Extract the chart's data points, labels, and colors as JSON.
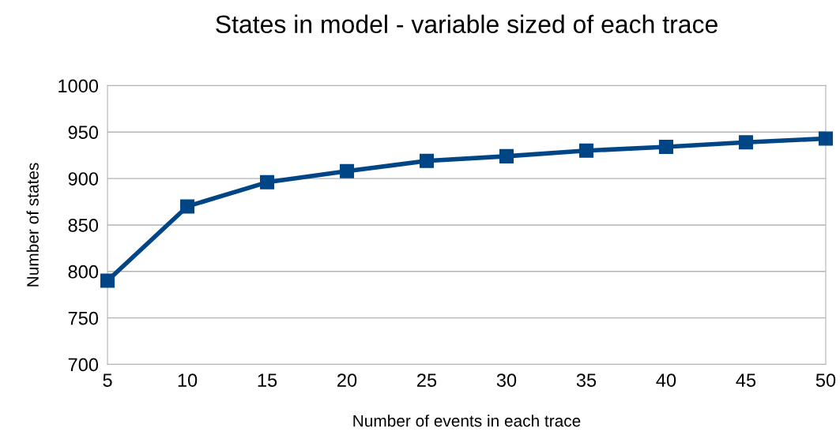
{
  "chart_data": {
    "type": "line",
    "title": "States in model - variable sized of each trace",
    "xlabel": "Number of events in each trace",
    "ylabel": "Number of states",
    "x": [
      5,
      10,
      15,
      20,
      25,
      30,
      35,
      40,
      45,
      50
    ],
    "series": [
      {
        "color": "#004586",
        "values": [
          790,
          870,
          896,
          908,
          919,
          924,
          930,
          934,
          939,
          943
        ]
      }
    ],
    "xlim": [
      5,
      50
    ],
    "xticks": [
      5,
      10,
      15,
      20,
      25,
      30,
      35,
      40,
      45,
      50
    ],
    "ylim": [
      700,
      1000
    ],
    "yticks": [
      700,
      750,
      800,
      850,
      900,
      950,
      1000
    ],
    "grid": "y",
    "legend": false,
    "marker": "square",
    "line_style": "solid"
  }
}
